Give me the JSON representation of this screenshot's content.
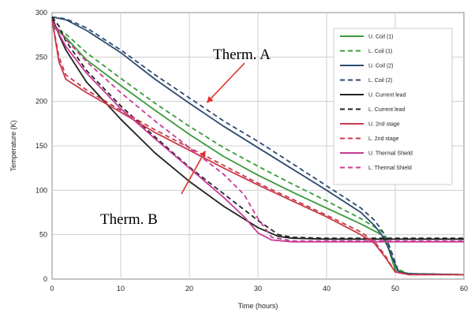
{
  "chart_data": {
    "type": "line",
    "title": "",
    "xlabel": "Time (hours)",
    "ylabel": "Temperature (K)",
    "xlim": [
      0,
      60
    ],
    "ylim": [
      0,
      300
    ],
    "xticks": [
      0,
      10,
      20,
      30,
      40,
      50,
      60
    ],
    "yticks": [
      0,
      50,
      100,
      150,
      200,
      250,
      300
    ],
    "grid": true,
    "legend_position": "top-right",
    "series": [
      {
        "name": "U. Coil (1)",
        "color": "#3a9a3a",
        "dash": "solid",
        "x": [
          0,
          2,
          5,
          10,
          15,
          20,
          25,
          30,
          35,
          40,
          45,
          48,
          49,
          50,
          52,
          60
        ],
        "y": [
          285,
          272,
          247,
          218,
          190,
          163,
          138,
          117,
          98,
          80,
          62,
          50,
          35,
          10,
          6,
          5
        ]
      },
      {
        "name": "L. Coil (1)",
        "color": "#3a9a3a",
        "dash": "dashed",
        "x": [
          0,
          2,
          5,
          10,
          15,
          20,
          25,
          30,
          35,
          40,
          45,
          48,
          49,
          50,
          52,
          60
        ],
        "y": [
          285,
          276,
          255,
          226,
          198,
          172,
          148,
          127,
          107,
          88,
          68,
          54,
          40,
          12,
          6,
          5
        ]
      },
      {
        "name": "U. Coil (2)",
        "color": "#2e4a6e",
        "dash": "solid",
        "x": [
          0,
          2,
          5,
          10,
          15,
          20,
          25,
          30,
          35,
          40,
          45,
          47,
          48.5,
          49.5,
          50.5,
          52,
          60
        ],
        "y": [
          295,
          292,
          280,
          255,
          225,
          198,
          172,
          148,
          124,
          100,
          75,
          60,
          45,
          25,
          8,
          6,
          5
        ]
      },
      {
        "name": "L. Coil (2)",
        "color": "#2e4a6e",
        "dash": "dashed",
        "x": [
          0,
          2,
          5,
          10,
          15,
          20,
          25,
          30,
          35,
          40,
          45,
          47,
          48.5,
          49.5,
          50.5,
          52,
          60
        ],
        "y": [
          295,
          293,
          283,
          258,
          230,
          204,
          178,
          155,
          130,
          105,
          80,
          66,
          50,
          30,
          8,
          6,
          5
        ]
      },
      {
        "name": "U. Current lead",
        "color": "#222222",
        "dash": "solid",
        "x": [
          0,
          1,
          2,
          5,
          10,
          15,
          20,
          25,
          30,
          33,
          35,
          40,
          45,
          50,
          60
        ],
        "y": [
          295,
          275,
          258,
          222,
          180,
          142,
          110,
          82,
          58,
          48,
          46,
          45,
          45,
          45,
          45
        ]
      },
      {
        "name": "L. Current lead",
        "color": "#222222",
        "dash": "dashed",
        "x": [
          0,
          1,
          2,
          5,
          10,
          15,
          20,
          25,
          30,
          33,
          35,
          40,
          45,
          50,
          60
        ],
        "y": [
          295,
          285,
          268,
          235,
          195,
          160,
          126,
          96,
          66,
          50,
          47,
          46,
          46,
          46,
          46
        ]
      },
      {
        "name": "U. 2nd stage",
        "color": "#c83a4a",
        "dash": "solid",
        "x": [
          0,
          1,
          2,
          5,
          10,
          15,
          20,
          25,
          30,
          35,
          40,
          45,
          47,
          48.5,
          50,
          52,
          60
        ],
        "y": [
          292,
          245,
          225,
          210,
          188,
          165,
          145,
          125,
          106,
          88,
          70,
          50,
          40,
          25,
          8,
          5,
          5
        ]
      },
      {
        "name": "L. 2nd stage",
        "color": "#c83a4a",
        "dash": "dashed",
        "x": [
          0,
          1,
          2,
          5,
          10,
          15,
          20,
          25,
          30,
          35,
          40,
          45,
          47,
          48.5,
          50,
          52,
          60
        ],
        "y": [
          292,
          250,
          230,
          213,
          190,
          168,
          148,
          128,
          108,
          90,
          72,
          53,
          42,
          27,
          8,
          5,
          5
        ]
      },
      {
        "name": "U. Thermal Shield",
        "color": "#c83a96",
        "dash": "solid",
        "x": [
          0,
          2,
          5,
          10,
          15,
          20,
          25,
          28,
          30,
          32,
          35,
          40,
          45,
          50,
          60
        ],
        "y": [
          290,
          262,
          232,
          192,
          158,
          125,
          92,
          70,
          52,
          44,
          42,
          42,
          42,
          42,
          42
        ]
      },
      {
        "name": "L. Thermal Shield",
        "color": "#c83a96",
        "dash": "dashed",
        "x": [
          0,
          2,
          5,
          10,
          15,
          20,
          25,
          28,
          30,
          32,
          35,
          40,
          45,
          50,
          60
        ],
        "y": [
          290,
          270,
          245,
          210,
          178,
          148,
          118,
          95,
          68,
          47,
          43,
          43,
          43,
          43,
          43
        ]
      }
    ],
    "annotations": [
      {
        "text": "Therm. A",
        "point_x": 22.6,
        "point_y": 199
      },
      {
        "text": "Therm. B",
        "point_x": 22.3,
        "point_y": 144
      }
    ]
  }
}
